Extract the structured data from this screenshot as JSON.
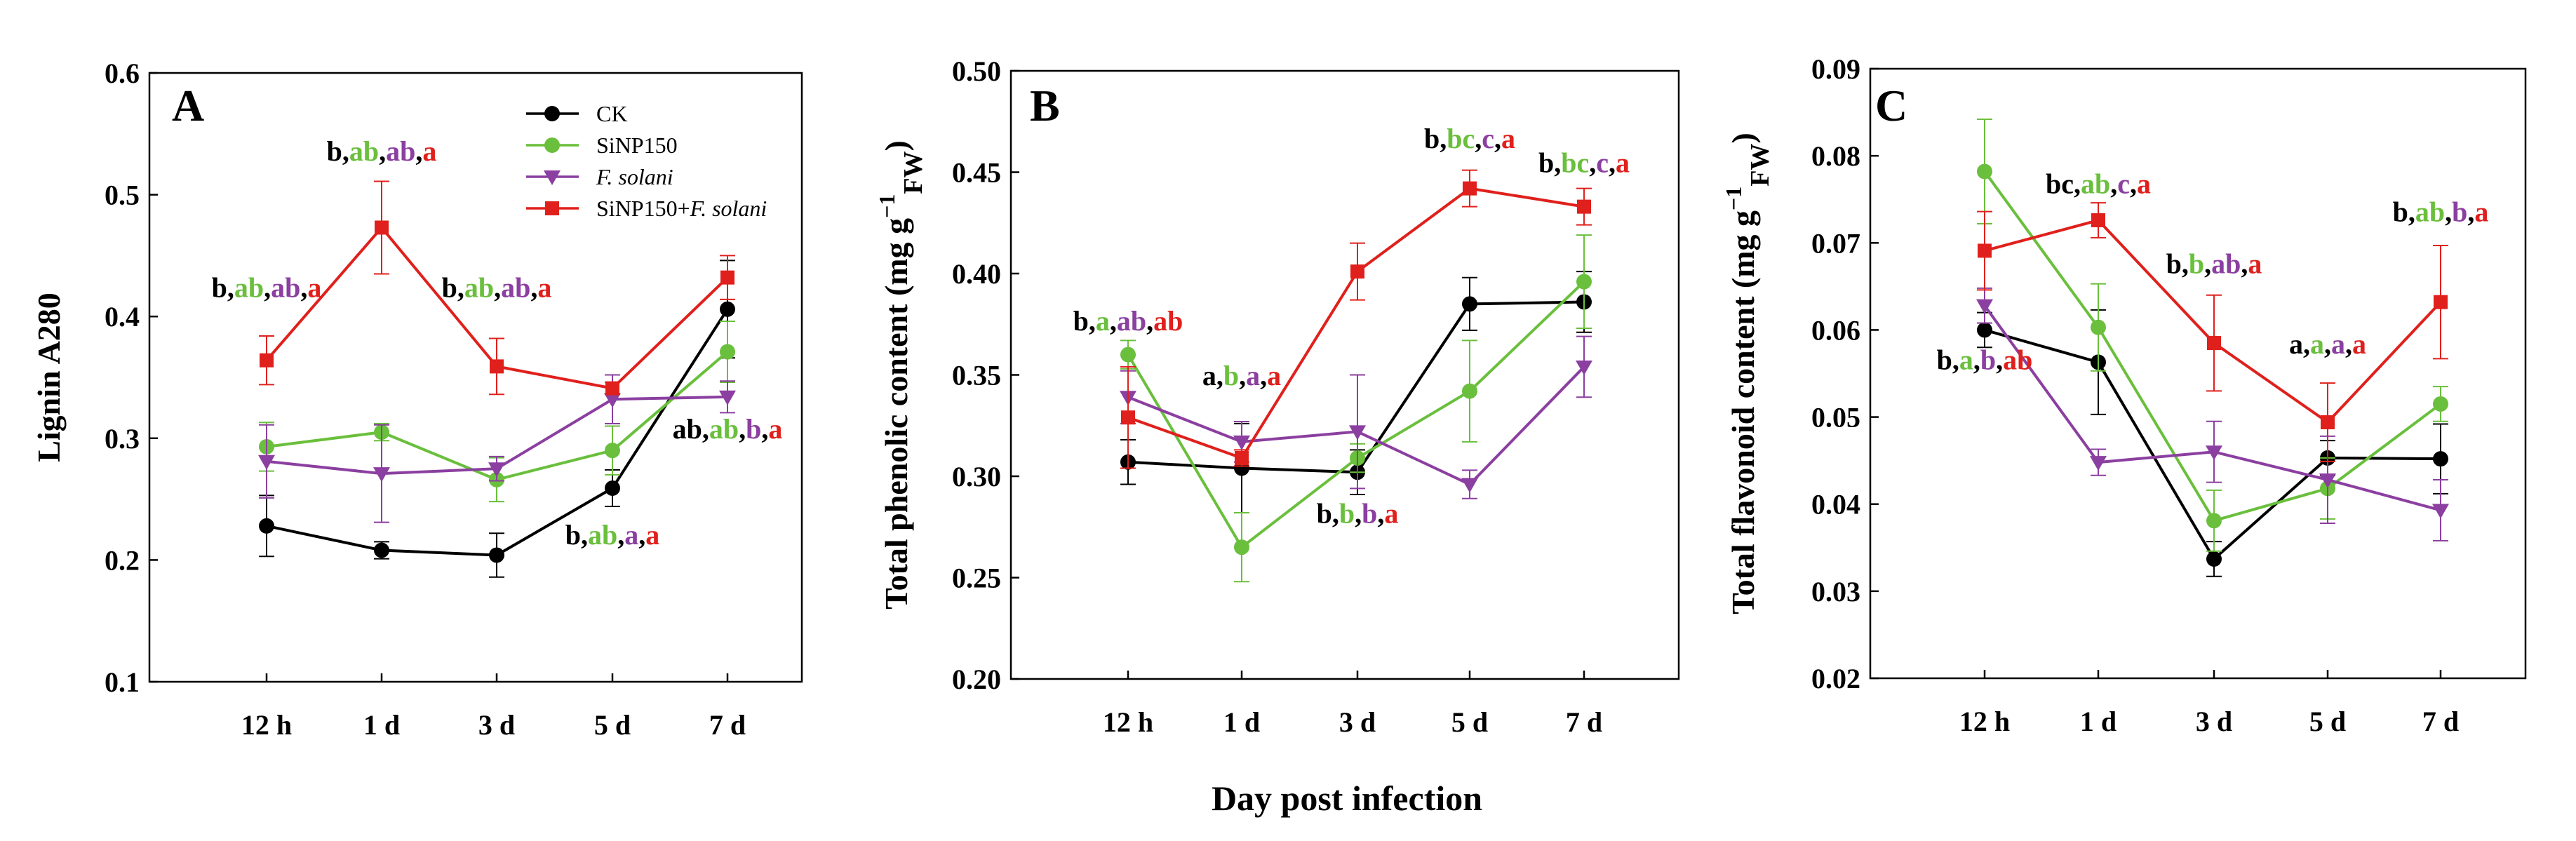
{
  "colors": {
    "CK": "#000000",
    "SiNP150": "#6abf3c",
    "F. solani": "#8b3fa0",
    "SiNP150+F. solani": "#e0201c"
  },
  "shared_xlabel": "Day post infection",
  "chart_data": [
    {
      "type": "line",
      "panel": "A",
      "ylabel": "Lignin A280",
      "categories": [
        "12 h",
        "1 d",
        "3 d",
        "5 d",
        "7 d"
      ],
      "ylim": [
        0.1,
        0.6
      ],
      "yticks": [
        "0.1",
        "0.2",
        "0.3",
        "0.4",
        "0.5",
        "0.6"
      ],
      "legend": {
        "position": "top-right",
        "entries": [
          {
            "label": "CK",
            "series": "CK",
            "marker": "circle",
            "italic": false
          },
          {
            "label": "SiNP150",
            "series": "SiNP150",
            "marker": "circle",
            "italic": false
          },
          {
            "label": "F. solani",
            "series": "F. solani",
            "marker": "triangle-down",
            "italic": true
          },
          {
            "label_plain": "SiNP150+",
            "label_italic": "F. solani",
            "series": "SiNP150+F. solani",
            "marker": "square"
          }
        ]
      },
      "series": [
        {
          "name": "CK",
          "marker": "circle",
          "values": [
            0.228,
            0.208,
            0.204,
            0.259,
            0.406
          ],
          "errors": [
            0.025,
            0.007,
            0.018,
            0.015,
            0.04
          ]
        },
        {
          "name": "SiNP150",
          "marker": "circle",
          "values": [
            0.293,
            0.305,
            0.266,
            0.29,
            0.371
          ],
          "errors": [
            0.02,
            0.007,
            0.018,
            0.02,
            0.025
          ]
        },
        {
          "name": "F. solani",
          "marker": "triangle-down",
          "values": [
            0.281,
            0.271,
            0.275,
            0.332,
            0.334
          ],
          "errors": [
            0.03,
            0.04,
            0.01,
            0.02,
            0.013
          ]
        },
        {
          "name": "SiNP150+F. solani",
          "marker": "square",
          "values": [
            0.364,
            0.473,
            0.359,
            0.341,
            0.432
          ],
          "errors": [
            0.02,
            0.038,
            0.023,
            0.005,
            0.018
          ]
        }
      ],
      "significance": [
        {
          "x": "12 h",
          "y": 0.416,
          "letters": [
            "b",
            "ab",
            "ab",
            "a"
          ]
        },
        {
          "x": "1 d",
          "y": 0.528,
          "letters": [
            "b",
            "ab",
            "ab",
            "a"
          ]
        },
        {
          "x": "3 d",
          "y": 0.416,
          "letters": [
            "b",
            "ab",
            "ab",
            "a"
          ]
        },
        {
          "x": "5 d",
          "y": 0.213,
          "letters": [
            "b",
            "ab",
            "a",
            "a"
          ]
        },
        {
          "x": "7 d",
          "y": 0.3,
          "letters": [
            "ab",
            "ab",
            "b",
            "a"
          ]
        }
      ]
    },
    {
      "type": "line",
      "panel": "B",
      "ylabel_main": "Total phenolic content  (mg g",
      "ylabel_sup": "−1",
      "ylabel_sub": "FW",
      "ylabel_end": ")",
      "categories": [
        "12 h",
        "1 d",
        "3 d",
        "5 d",
        "7 d"
      ],
      "ylim": [
        0.2,
        0.5
      ],
      "yticks": [
        "0.20",
        "0.25",
        "0.30",
        "0.35",
        "0.40",
        "0.45",
        "0.50"
      ],
      "series": [
        {
          "name": "CK",
          "marker": "circle",
          "values": [
            0.307,
            0.304,
            0.302,
            0.385,
            0.386
          ],
          "errors": [
            0.011,
            0.022,
            0.011,
            0.013,
            0.015
          ]
        },
        {
          "name": "SiNP150",
          "marker": "circle",
          "values": [
            0.36,
            0.265,
            0.309,
            0.342,
            0.396
          ],
          "errors": [
            0.007,
            0.017,
            0.007,
            0.025,
            0.023
          ]
        },
        {
          "name": "F. solani",
          "marker": "triangle-down",
          "values": [
            0.339,
            0.317,
            0.322,
            0.296,
            0.354
          ],
          "errors": [
            0.013,
            0.01,
            0.028,
            0.007,
            0.015
          ]
        },
        {
          "name": "SiNP150+F. solani",
          "marker": "square",
          "values": [
            0.329,
            0.309,
            0.401,
            0.442,
            0.433
          ],
          "errors": [
            0.025,
            0.004,
            0.014,
            0.009,
            0.009
          ]
        }
      ],
      "significance": [
        {
          "x": "12 h",
          "y": 0.372,
          "letters": [
            "b",
            "a",
            "ab",
            "ab"
          ]
        },
        {
          "x": "1 d",
          "y": 0.345,
          "letters": [
            "a",
            "b",
            "a",
            "a"
          ]
        },
        {
          "x": "3 d",
          "y": 0.277,
          "letters": [
            "b",
            "b",
            "b",
            "a"
          ]
        },
        {
          "x": "5 d",
          "y": 0.462,
          "letters": [
            "b",
            "bc",
            "c",
            "a"
          ]
        },
        {
          "x": "7 d",
          "y": 0.45,
          "letters": [
            "b",
            "bc",
            "c",
            "a"
          ]
        }
      ]
    },
    {
      "type": "line",
      "panel": "C",
      "ylabel_main": "Total flavonoid content  (mg g",
      "ylabel_sup": "−1",
      "ylabel_sub": "FW",
      "ylabel_end": ")",
      "categories": [
        "12 h",
        "1 d",
        "3 d",
        "5 d",
        "7 d"
      ],
      "ylim": [
        0.02,
        0.09
      ],
      "yticks": [
        "0.02",
        "0.03",
        "0.04",
        "0.05",
        "0.06",
        "0.07",
        "0.08",
        "0.09"
      ],
      "series": [
        {
          "name": "CK",
          "marker": "circle",
          "values": [
            0.06,
            0.0563,
            0.0337,
            0.0453,
            0.0452
          ],
          "errors": [
            0.002,
            0.006,
            0.002,
            0.002,
            0.004
          ]
        },
        {
          "name": "SiNP150",
          "marker": "circle",
          "values": [
            0.0782,
            0.0603,
            0.0381,
            0.0418,
            0.0515
          ],
          "errors": [
            0.006,
            0.005,
            0.0035,
            0.0035,
            0.002
          ]
        },
        {
          "name": "F. solani",
          "marker": "triangle-down",
          "values": [
            0.0628,
            0.0448,
            0.046,
            0.0428,
            0.0393
          ],
          "errors": [
            0.002,
            0.0015,
            0.0035,
            0.005,
            0.0035
          ]
        },
        {
          "name": "SiNP150+F. solani",
          "marker": "square",
          "values": [
            0.0691,
            0.0726,
            0.0585,
            0.0494,
            0.0632
          ],
          "errors": [
            0.0045,
            0.002,
            0.0055,
            0.0045,
            0.0065
          ]
        }
      ],
      "significance": [
        {
          "x": "12 h",
          "y": 0.0555,
          "letters": [
            "b",
            "a",
            "b",
            "ab"
          ]
        },
        {
          "x": "1 d",
          "y": 0.0757,
          "letters": [
            "bc",
            "ab",
            "c",
            "a"
          ]
        },
        {
          "x": "3 d",
          "y": 0.0665,
          "letters": [
            "b",
            "b",
            "ab",
            "a"
          ]
        },
        {
          "x": "5 d",
          "y": 0.0573,
          "letters": [
            "a",
            "a",
            "a",
            "a"
          ]
        },
        {
          "x": "7 d",
          "y": 0.0725,
          "letters": [
            "b",
            "ab",
            "b",
            "a"
          ]
        }
      ]
    }
  ]
}
